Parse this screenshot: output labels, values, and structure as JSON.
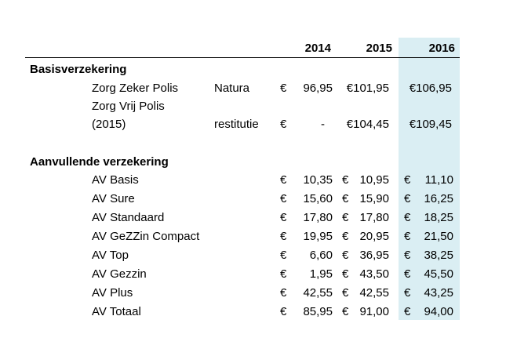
{
  "table": {
    "years": [
      "2014",
      "2015",
      "2016"
    ],
    "sections": [
      {
        "title": "Basisverzekering",
        "rows": [
          {
            "name": "Zorg Zeker Polis",
            "type": "Natura",
            "v2014": "96,95",
            "v2015": "€101,95",
            "v2016": "€106,95"
          },
          {
            "name_line1": "Zorg Vrij Polis",
            "name_line2": "(2015)",
            "type": "restitutie",
            "v2014": "-",
            "v2015": "€104,45",
            "v2016": "€109,45"
          }
        ]
      },
      {
        "title": "Aanvullende verzekering",
        "rows": [
          {
            "name": "AV Basis",
            "v2014": "10,35",
            "v2015": "10,95",
            "v2016": "11,10"
          },
          {
            "name": "AV Sure",
            "v2014": "15,60",
            "v2015": "15,90",
            "v2016": "16,25"
          },
          {
            "name": "AV Standaard",
            "v2014": "17,80",
            "v2015": "17,80",
            "v2016": "18,25"
          },
          {
            "name": "AV GeZZin Compact",
            "v2014": "19,95",
            "v2015": "20,95",
            "v2016": "21,50"
          },
          {
            "name": "AV Top",
            "v2014": "6,60",
            "v2015": "36,95",
            "v2016": "38,25"
          },
          {
            "name": "AV Gezzin",
            "v2014": "1,95",
            "v2015": "43,50",
            "v2016": "45,50"
          },
          {
            "name": "AV Plus",
            "v2014": "42,55",
            "v2015": "42,55",
            "v2016": "43,25"
          },
          {
            "name": "AV Totaal",
            "v2014": "85,95",
            "v2015": "91,00",
            "v2016": "94,00"
          }
        ]
      }
    ],
    "currency": "€",
    "highlight_color": "#daeef3"
  }
}
